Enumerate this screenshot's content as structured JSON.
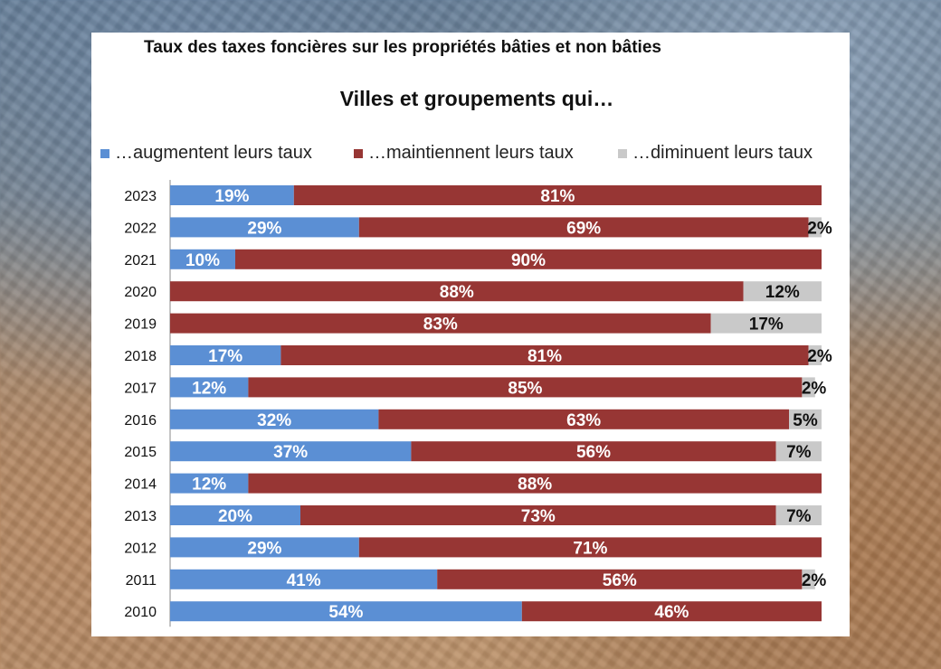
{
  "header": {
    "super_title": "Taux des taxes foncières sur les propriétés bâties et non bâties"
  },
  "chart_data": {
    "type": "bar",
    "orientation": "horizontal",
    "stacked": true,
    "normalized": true,
    "title": "Villes et groupements qui…",
    "legend_position": "top",
    "colors": {
      "up": "#5b8fd4",
      "same": "#973634",
      "down": "#c9c9c9"
    },
    "categories": [
      "2023",
      "2022",
      "2021",
      "2020",
      "2019",
      "2018",
      "2017",
      "2016",
      "2015",
      "2014",
      "2013",
      "2012",
      "2011",
      "2010"
    ],
    "series": [
      {
        "name": "…augmentent leurs taux",
        "key": "up",
        "values": [
          19,
          29,
          10,
          0,
          0,
          17,
          12,
          32,
          37,
          12,
          20,
          29,
          41,
          54
        ],
        "labels": [
          "19%",
          "29%",
          "10%",
          "",
          "",
          "17%",
          "12%",
          "32%",
          "37%",
          "12%",
          "20%",
          "29%",
          "41%",
          "54%"
        ]
      },
      {
        "name": "…maintiennent leurs taux",
        "key": "same",
        "values": [
          81,
          69,
          90,
          88,
          83,
          81,
          85,
          63,
          56,
          88,
          73,
          71,
          56,
          46
        ],
        "labels": [
          "81%",
          "69%",
          "90%",
          "88%",
          "83%",
          "81%",
          "85%",
          "63%",
          "56%",
          "88%",
          "73%",
          "71%",
          "56%",
          "46%"
        ]
      },
      {
        "name": "…diminuent leurs taux",
        "key": "down",
        "values": [
          0,
          2,
          0,
          12,
          17,
          2,
          2,
          5,
          7,
          0,
          7,
          0,
          2,
          0
        ],
        "labels": [
          "",
          "2%",
          "",
          "12%",
          "17%",
          "2%",
          "2%",
          "5%",
          "7%",
          "",
          "7%",
          "",
          "2%",
          ""
        ]
      }
    ]
  }
}
